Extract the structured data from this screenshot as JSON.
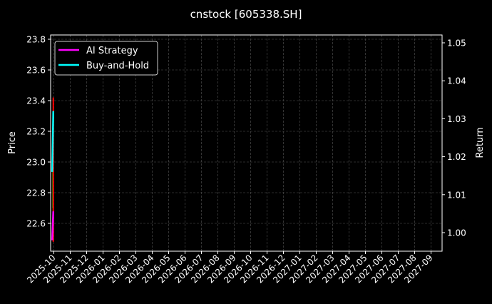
{
  "chart_data": {
    "type": "line",
    "title": "cnstock [605338.SH]",
    "ylabel": "Price",
    "y2label": "Return",
    "ylim": [
      22.45,
      23.82
    ],
    "y2lim": [
      0.996,
      1.051
    ],
    "yticks": [
      "22.6",
      "22.8",
      "23.0",
      "23.2",
      "23.4",
      "23.6",
      "23.8"
    ],
    "y2ticks": [
      "1.00",
      "1.01",
      "1.02",
      "1.03",
      "1.04",
      "1.05"
    ],
    "xticks": [
      "2025-10",
      "2025-11",
      "2025-12",
      "2026-01",
      "2026-02",
      "2026-03",
      "2026-04",
      "2026-05",
      "2026-06",
      "2026-07",
      "2026-08",
      "2026-09",
      "2026-10",
      "2026-11",
      "2026-12",
      "2027-01",
      "2027-02",
      "2027-03",
      "2027-04",
      "2027-05",
      "2027-06",
      "2027-07",
      "2027-08",
      "2027-09"
    ],
    "grid": true,
    "legend_position": "top-left",
    "candles": [
      {
        "date": "2025-09-29",
        "open": 22.7,
        "high": 22.95,
        "low": 22.68,
        "close": 22.95,
        "color": "#008000"
      },
      {
        "date": "2025-09-30",
        "open": 23.42,
        "high": 23.42,
        "low": 22.48,
        "close": 22.48,
        "color": "#ff0000"
      }
    ],
    "series": [
      {
        "name": "AI Strategy",
        "color": "#ff00ff",
        "x": [
          "2025-09-28",
          "2025-09-30"
        ],
        "values": [
          0.998,
          1.0056
        ]
      },
      {
        "name": "Buy-and-Hold",
        "color": "#00ffff",
        "x": [
          "2025-09-28",
          "2025-09-30"
        ],
        "values": [
          1.016,
          1.032
        ]
      }
    ]
  }
}
